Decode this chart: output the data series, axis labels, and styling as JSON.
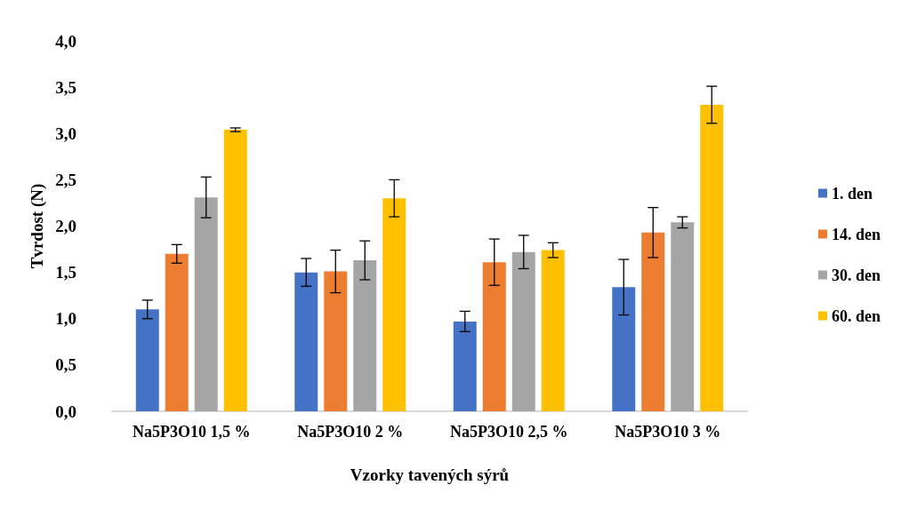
{
  "chart_data": {
    "type": "bar",
    "xlabel": "Vzorky tavených sýrů",
    "ylabel": "Tvrdost (N)",
    "categories": [
      "Na5P3O10 1,5 %",
      "Na5P3O10 2 %",
      "Na5P3O10 2,5 %",
      "Na5P3O10 3 %"
    ],
    "series": [
      {
        "name": "1. den",
        "color": "#4472c4",
        "values": [
          1.1,
          1.5,
          0.97,
          1.34
        ],
        "errors": [
          0.1,
          0.15,
          0.11,
          0.3
        ]
      },
      {
        "name": "14. den",
        "color": "#ed7d31",
        "values": [
          1.7,
          1.51,
          1.61,
          1.93
        ],
        "errors": [
          0.1,
          0.23,
          0.25,
          0.27
        ]
      },
      {
        "name": "30. den",
        "color": "#a5a5a5",
        "values": [
          2.31,
          1.63,
          1.72,
          2.04
        ],
        "errors": [
          0.22,
          0.21,
          0.18,
          0.06
        ]
      },
      {
        "name": "60. den",
        "color": "#ffc000",
        "values": [
          3.04,
          2.3,
          1.74,
          3.31
        ],
        "errors": [
          0.02,
          0.2,
          0.08,
          0.2
        ]
      }
    ],
    "ylim": [
      0,
      4
    ],
    "yticks": [
      {
        "value": 0,
        "label": "0,0"
      },
      {
        "value": 0.5,
        "label": "0,5"
      },
      {
        "value": 1,
        "label": "1,0"
      },
      {
        "value": 1.5,
        "label": "1,5"
      },
      {
        "value": 2,
        "label": "2,0"
      },
      {
        "value": 2.5,
        "label": "2,5"
      },
      {
        "value": 3,
        "label": "3,0"
      },
      {
        "value": 3.5,
        "label": "3,5"
      },
      {
        "value": 4,
        "label": "4,0"
      }
    ],
    "grid": false,
    "legend": "right"
  }
}
